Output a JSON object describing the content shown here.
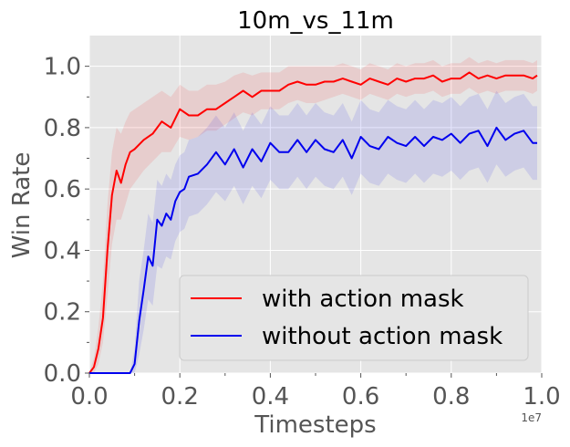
{
  "chart_data": {
    "type": "line",
    "title": "10m_vs_11m",
    "xlabel": "Timesteps",
    "ylabel": "Win Rate",
    "x_offset_label": "1e7",
    "xlim": [
      0,
      1.0
    ],
    "ylim": [
      0,
      1.1
    ],
    "x_ticks": [
      "0.0",
      "0.2",
      "0.4",
      "0.6",
      "0.8",
      "1.0"
    ],
    "y_ticks": [
      "0.0",
      "0.2",
      "0.4",
      "0.6",
      "0.8",
      "1.0"
    ],
    "grid": true,
    "legend_position": "lower-right",
    "series": [
      {
        "name": "with action mask",
        "color": "#ff0000",
        "x": [
          0.0,
          0.01,
          0.02,
          0.03,
          0.04,
          0.05,
          0.06,
          0.07,
          0.08,
          0.09,
          0.1,
          0.12,
          0.14,
          0.16,
          0.18,
          0.2,
          0.22,
          0.24,
          0.26,
          0.28,
          0.3,
          0.32,
          0.34,
          0.36,
          0.38,
          0.4,
          0.42,
          0.44,
          0.46,
          0.48,
          0.5,
          0.52,
          0.54,
          0.56,
          0.58,
          0.6,
          0.62,
          0.64,
          0.66,
          0.68,
          0.7,
          0.72,
          0.74,
          0.76,
          0.78,
          0.8,
          0.82,
          0.84,
          0.86,
          0.88,
          0.9,
          0.92,
          0.94,
          0.96,
          0.98,
          0.99
        ],
        "values": [
          0.0,
          0.02,
          0.08,
          0.18,
          0.4,
          0.58,
          0.66,
          0.62,
          0.68,
          0.72,
          0.73,
          0.76,
          0.78,
          0.82,
          0.8,
          0.86,
          0.84,
          0.84,
          0.86,
          0.86,
          0.88,
          0.9,
          0.92,
          0.9,
          0.92,
          0.92,
          0.92,
          0.94,
          0.95,
          0.94,
          0.94,
          0.95,
          0.95,
          0.96,
          0.95,
          0.94,
          0.96,
          0.95,
          0.94,
          0.96,
          0.95,
          0.96,
          0.96,
          0.97,
          0.95,
          0.96,
          0.96,
          0.98,
          0.96,
          0.97,
          0.96,
          0.97,
          0.97,
          0.97,
          0.96,
          0.97
        ],
        "band_lower": [
          0.0,
          0.0,
          0.03,
          0.1,
          0.25,
          0.42,
          0.5,
          0.5,
          0.55,
          0.6,
          0.62,
          0.66,
          0.69,
          0.72,
          0.72,
          0.77,
          0.76,
          0.77,
          0.79,
          0.79,
          0.81,
          0.83,
          0.85,
          0.84,
          0.86,
          0.86,
          0.86,
          0.88,
          0.89,
          0.88,
          0.88,
          0.89,
          0.9,
          0.91,
          0.9,
          0.89,
          0.91,
          0.9,
          0.89,
          0.91,
          0.9,
          0.91,
          0.91,
          0.92,
          0.9,
          0.91,
          0.91,
          0.93,
          0.91,
          0.92,
          0.91,
          0.92,
          0.92,
          0.92,
          0.91,
          0.92
        ],
        "band_upper": [
          0.0,
          0.05,
          0.15,
          0.3,
          0.55,
          0.72,
          0.8,
          0.78,
          0.82,
          0.85,
          0.86,
          0.88,
          0.9,
          0.92,
          0.9,
          0.94,
          0.92,
          0.92,
          0.94,
          0.94,
          0.95,
          0.97,
          0.98,
          0.97,
          0.98,
          0.98,
          0.98,
          1.0,
          1.0,
          1.0,
          1.0,
          1.0,
          1.0,
          1.01,
          1.0,
          0.99,
          1.01,
          1.0,
          0.99,
          1.01,
          1.0,
          1.01,
          1.01,
          1.02,
          1.0,
          1.01,
          1.01,
          1.03,
          1.01,
          1.02,
          1.01,
          1.02,
          1.02,
          1.02,
          1.01,
          1.02
        ]
      },
      {
        "name": "without action mask",
        "color": "#0000ee",
        "x": [
          0.0,
          0.02,
          0.04,
          0.06,
          0.08,
          0.09,
          0.1,
          0.11,
          0.12,
          0.13,
          0.14,
          0.15,
          0.16,
          0.17,
          0.18,
          0.19,
          0.2,
          0.21,
          0.22,
          0.24,
          0.26,
          0.28,
          0.3,
          0.32,
          0.34,
          0.36,
          0.38,
          0.4,
          0.42,
          0.44,
          0.46,
          0.48,
          0.5,
          0.52,
          0.54,
          0.56,
          0.58,
          0.6,
          0.62,
          0.64,
          0.66,
          0.68,
          0.7,
          0.72,
          0.74,
          0.76,
          0.78,
          0.8,
          0.82,
          0.84,
          0.86,
          0.88,
          0.9,
          0.92,
          0.94,
          0.96,
          0.98,
          0.99
        ],
        "values": [
          0.0,
          0.0,
          0.0,
          0.0,
          0.0,
          0.0,
          0.03,
          0.17,
          0.27,
          0.38,
          0.35,
          0.5,
          0.48,
          0.52,
          0.5,
          0.56,
          0.59,
          0.6,
          0.64,
          0.65,
          0.68,
          0.72,
          0.68,
          0.73,
          0.67,
          0.73,
          0.69,
          0.75,
          0.72,
          0.72,
          0.76,
          0.72,
          0.76,
          0.73,
          0.72,
          0.76,
          0.7,
          0.77,
          0.74,
          0.73,
          0.77,
          0.75,
          0.74,
          0.77,
          0.74,
          0.77,
          0.76,
          0.78,
          0.75,
          0.78,
          0.79,
          0.74,
          0.8,
          0.76,
          0.78,
          0.79,
          0.75,
          0.75
        ],
        "band_lower": [
          0.0,
          0.0,
          0.0,
          0.0,
          0.0,
          0.0,
          0.0,
          0.06,
          0.14,
          0.24,
          0.22,
          0.35,
          0.34,
          0.38,
          0.37,
          0.43,
          0.46,
          0.47,
          0.51,
          0.52,
          0.55,
          0.59,
          0.56,
          0.61,
          0.55,
          0.61,
          0.57,
          0.63,
          0.6,
          0.6,
          0.64,
          0.6,
          0.64,
          0.61,
          0.6,
          0.64,
          0.58,
          0.65,
          0.62,
          0.61,
          0.65,
          0.63,
          0.62,
          0.65,
          0.62,
          0.65,
          0.64,
          0.66,
          0.63,
          0.66,
          0.67,
          0.62,
          0.68,
          0.64,
          0.66,
          0.67,
          0.63,
          0.63
        ],
        "band_upper": [
          0.0,
          0.0,
          0.0,
          0.0,
          0.0,
          0.0,
          0.08,
          0.3,
          0.4,
          0.52,
          0.49,
          0.63,
          0.61,
          0.65,
          0.63,
          0.68,
          0.71,
          0.72,
          0.76,
          0.77,
          0.8,
          0.84,
          0.8,
          0.85,
          0.79,
          0.85,
          0.81,
          0.87,
          0.84,
          0.84,
          0.88,
          0.84,
          0.88,
          0.85,
          0.84,
          0.88,
          0.82,
          0.89,
          0.86,
          0.85,
          0.89,
          0.87,
          0.86,
          0.89,
          0.86,
          0.89,
          0.88,
          0.9,
          0.87,
          0.9,
          0.91,
          0.86,
          0.92,
          0.88,
          0.9,
          0.91,
          0.87,
          0.87
        ]
      }
    ]
  }
}
